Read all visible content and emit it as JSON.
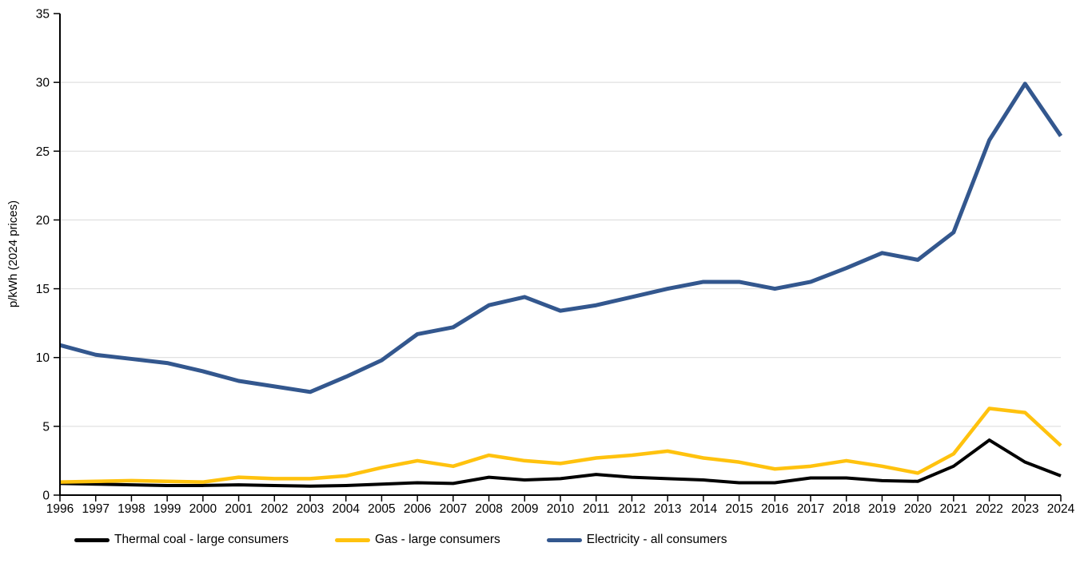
{
  "chart": {
    "y_axis_label": "p/kWh (2024 prices)"
  },
  "colors": {
    "background": "#FFFFFF",
    "axis": "#000000",
    "gridline": "#D9D9D9",
    "coal": "#000000",
    "gas": "#FFC20E",
    "electricity": "#33578E"
  },
  "legend": {
    "items": [
      {
        "id": "coal",
        "label": "Thermal coal - large consumers",
        "color": "#000000"
      },
      {
        "id": "gas",
        "label": "Gas - large consumers",
        "color": "#FFC20E"
      },
      {
        "id": "electricity",
        "label": "Electricity - all consumers",
        "color": "#33578E"
      }
    ]
  },
  "chart_data": {
    "type": "line",
    "title": "",
    "xlabel": "",
    "ylabel": "p/kWh (2024 prices)",
    "ylim": [
      0,
      35
    ],
    "y_tick_step": 5,
    "y_tick_values": [
      0,
      5,
      10,
      15,
      20,
      25,
      30,
      35
    ],
    "y_tick_labels": [
      "0",
      "5",
      "10",
      "15",
      "20",
      "25",
      "30",
      "35"
    ],
    "grid": "horizontal gridlines at each 5 p/kWh, none at 0 and 35",
    "legend_position": "bottom-left",
    "x": [
      1996,
      1997,
      1998,
      1999,
      2000,
      2001,
      2002,
      2003,
      2004,
      2005,
      2006,
      2007,
      2008,
      2009,
      2010,
      2011,
      2012,
      2013,
      2014,
      2015,
      2016,
      2017,
      2018,
      2019,
      2020,
      2021,
      2022,
      2023,
      2024
    ],
    "x_tick_labels": [
      "1996",
      "1997",
      "1998",
      "1999",
      "2000",
      "2001",
      "2002",
      "2003",
      "2004",
      "2005",
      "2006",
      "2007",
      "2008",
      "2009",
      "2010",
      "2011",
      "2012",
      "2013",
      "2014",
      "2015",
      "2016",
      "2017",
      "2018",
      "2019",
      "2020",
      "2021",
      "2022",
      "2023",
      "2024"
    ],
    "series": [
      {
        "id": "coal",
        "name": "Thermal coal - large consumers",
        "color": "#000000",
        "values": [
          0.85,
          0.8,
          0.75,
          0.7,
          0.7,
          0.75,
          0.7,
          0.65,
          0.7,
          0.8,
          0.9,
          0.85,
          1.3,
          1.1,
          1.2,
          1.5,
          1.3,
          1.2,
          1.1,
          0.9,
          0.9,
          1.25,
          1.25,
          1.05,
          1.0,
          2.1,
          4.0,
          2.4,
          1.4
        ]
      },
      {
        "id": "gas",
        "name": "Gas - large consumers",
        "color": "#FFC20E",
        "values": [
          0.95,
          1.0,
          1.05,
          1.0,
          0.95,
          1.3,
          1.2,
          1.2,
          1.4,
          2.0,
          2.5,
          2.1,
          2.9,
          2.5,
          2.3,
          2.7,
          2.9,
          3.2,
          2.7,
          2.4,
          1.9,
          2.1,
          2.5,
          2.1,
          1.6,
          3.0,
          6.3,
          6.0,
          3.6
        ]
      },
      {
        "id": "electricity",
        "name": "Electricity - all consumers",
        "color": "#33578E",
        "values": [
          10.9,
          10.2,
          9.9,
          9.6,
          9.0,
          8.3,
          7.9,
          7.5,
          8.6,
          9.8,
          11.7,
          12.2,
          13.8,
          14.4,
          13.4,
          13.8,
          14.4,
          15.0,
          15.5,
          15.5,
          15.0,
          15.5,
          16.5,
          17.6,
          17.1,
          19.1,
          25.8,
          29.9,
          26.1
        ]
      }
    ]
  }
}
